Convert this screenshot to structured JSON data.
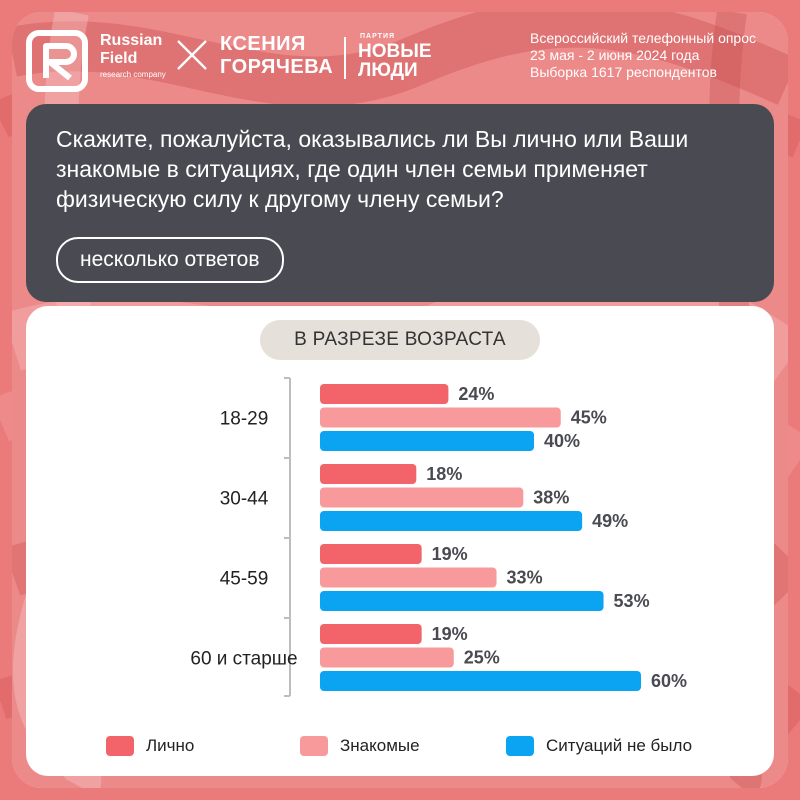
{
  "header": {
    "rf_name": "Russian Field",
    "rf_sub": "research company",
    "candidate": "КСЕНИЯ ГОРЯЧЕВА",
    "party_small": "ПАРТИЯ",
    "party_name": "НОВЫЕ ЛЮДИ",
    "survey_lines": [
      "Всероссийский телефонный опрос",
      "23 мая - 2 июня 2024 года",
      "Выборка 1617 респондентов"
    ]
  },
  "question": {
    "text": "Скажите, пожалуйста, оказывались ли Вы лично или Ваши знакомые в ситуациях, где один член семьи применяет физическую силу к другому члену семьи?",
    "answer_type": "несколько ответов"
  },
  "colors": {
    "personal": "#f2636a",
    "acquaintances": "#f8999b",
    "none": "#0ba4f2",
    "value_text": "#4a4b52",
    "axis": "#bdbdbd"
  },
  "chart_data": {
    "type": "bar",
    "orientation": "horizontal",
    "subtitle": "В РАЗРЕЗЕ ВОЗРАСТА",
    "categories": [
      "18-29",
      "30-44",
      "45-59",
      "60 и старше"
    ],
    "series": [
      {
        "name": "Лично",
        "values": [
          24,
          18,
          19,
          19
        ]
      },
      {
        "name": "Знакомые",
        "values": [
          45,
          38,
          33,
          25
        ]
      },
      {
        "name": "Ситуаций не было",
        "values": [
          40,
          49,
          53,
          60
        ]
      }
    ],
    "value_labels": [
      [
        "24%",
        "18%",
        "19%",
        "19%"
      ],
      [
        "45%",
        "38%",
        "33%",
        "25%"
      ],
      [
        "40%",
        "49%",
        "53%",
        "60%"
      ]
    ],
    "unit": "%",
    "xlim": [
      0,
      60
    ],
    "legend_position": "bottom"
  }
}
